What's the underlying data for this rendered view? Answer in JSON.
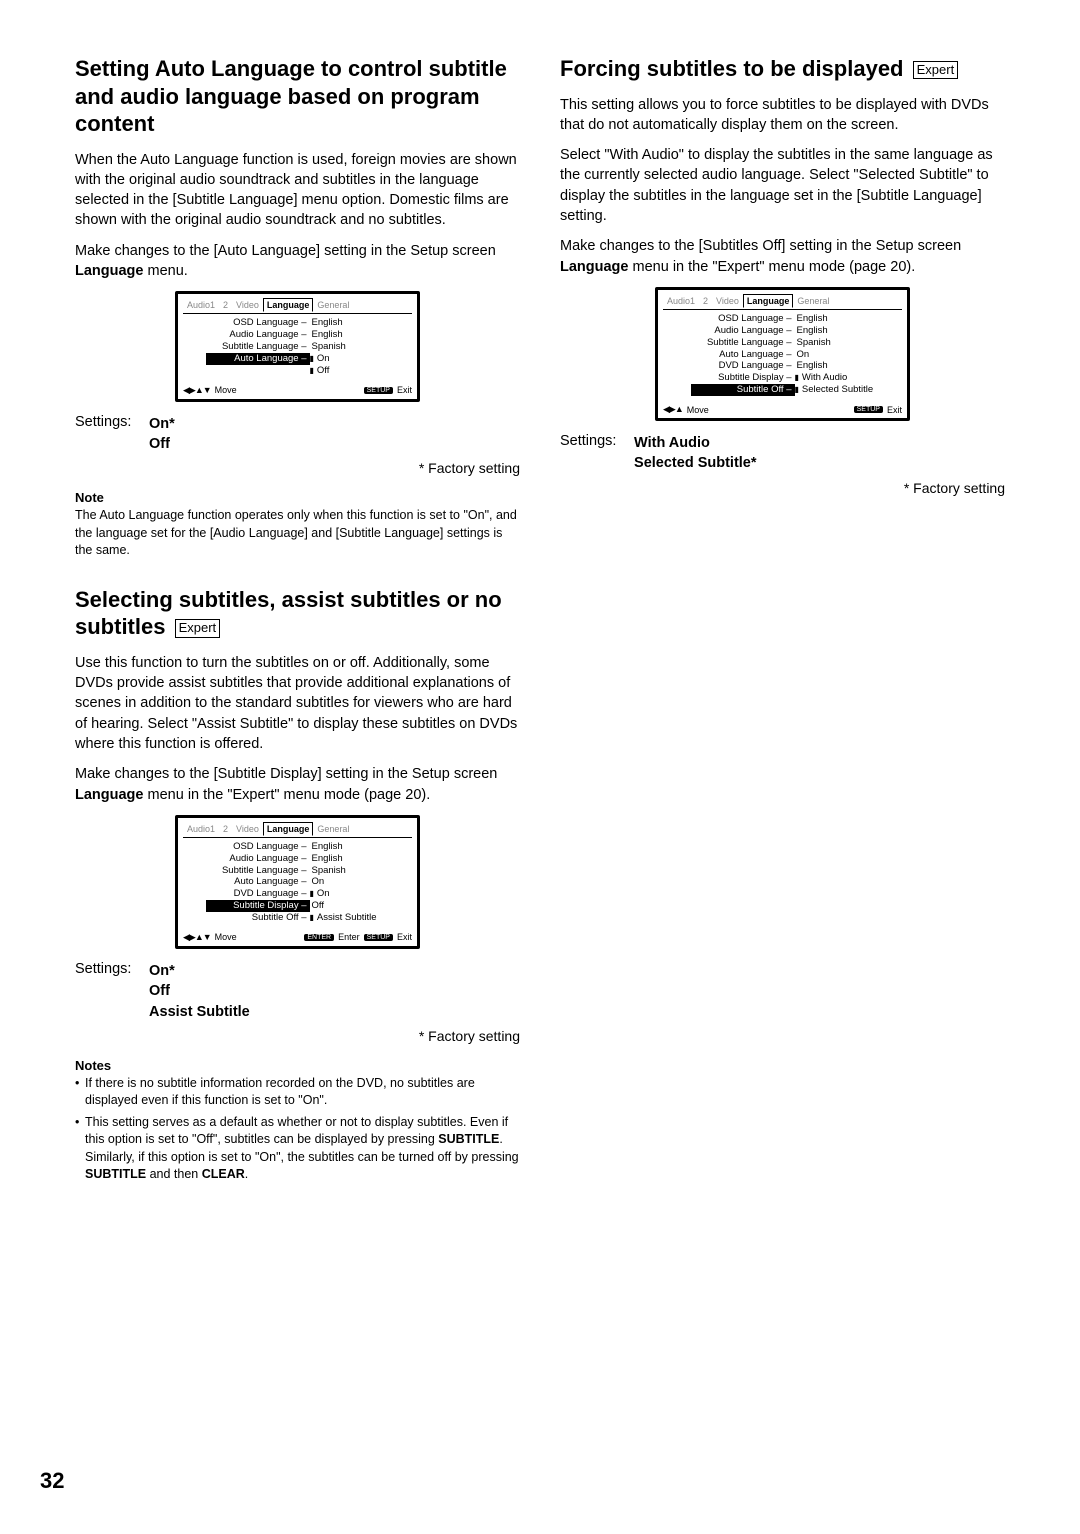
{
  "pageNumber": "32",
  "expertLabel": "Expert",
  "factoryNote": "*  Factory setting",
  "osdTabs": [
    "Audio1",
    "2",
    "Video",
    "Language",
    "General"
  ],
  "osdActiveTab": 3,
  "s1": {
    "title": "Setting Auto Language to control subtitle and audio language based on program content",
    "p1": "When the Auto Language function is used, foreign movies are shown with the original audio soundtrack and subtitles in the language selected in the [Subtitle Language] menu option. Domestic films are shown with the original audio soundtrack and no subtitles.",
    "p2a": "Make changes to the [Auto Language] setting in the Setup screen ",
    "p2b": "Language",
    "p2c": " menu.",
    "settingsLabel": "Settings:",
    "settings": [
      "On*",
      "Off"
    ],
    "noteHd": "Note",
    "noteTxt": "The Auto Language function operates only when this function is set to \"On\", and the language set for the [Audio Language] and [Subtitle Language] settings is the same.",
    "osd": {
      "rows": [
        {
          "l": "OSD Language",
          "r": "English"
        },
        {
          "l": "Audio Language",
          "r": "English"
        },
        {
          "l": "Subtitle Language",
          "r": "Spanish"
        },
        {
          "l": "Auto Language",
          "r": "On",
          "sel": true,
          "cursor": true
        }
      ],
      "extraOpts": [
        "Off"
      ],
      "foot": {
        "arrows": "◀▶▲▼",
        "move": "Move",
        "btn2": "SETUP",
        "txt2": "Exit"
      }
    }
  },
  "s2": {
    "title": "Selecting subtitles, assist subtitles or no subtitles",
    "p1": "Use this function to turn the subtitles on or off. Additionally, some DVDs provide assist subtitles that provide additional explanations of scenes in addition to the standard subtitles for viewers who are hard of hearing. Select \"Assist Subtitle\" to display these subtitles on DVDs where this function is offered.",
    "p2a": "Make changes to the [Subtitle Display] setting in the Setup screen ",
    "p2b": "Language",
    "p2c": " menu in the \"Expert\" menu mode (page 20).",
    "settingsLabel": "Settings:",
    "settings": [
      "On*",
      "Off",
      "Assist Subtitle"
    ],
    "notesHd": "Notes",
    "notes": [
      "If there is no subtitle information recorded on the DVD, no subtitles are displayed even if this function is set to \"On\".",
      "This setting serves as a default as whether or not to display subtitles. Even if this option is set to \"Off\", subtitles can be displayed by pressing <b>SUBTITLE</b>. Similarly, if this option is set to \"On\", the subtitles can be turned off by pressing <b>SUBTITLE</b> and then <b>CLEAR</b>."
    ],
    "osd": {
      "rows": [
        {
          "l": "OSD Language",
          "r": "English"
        },
        {
          "l": "Audio Language",
          "r": "English"
        },
        {
          "l": "Subtitle Language",
          "r": "Spanish"
        },
        {
          "l": "Auto Language",
          "r": "On"
        },
        {
          "l": "DVD Language",
          "r": "On",
          "cursor": true
        },
        {
          "l": "Subtitle Display",
          "r": "Off",
          "selL": true
        },
        {
          "l": "Subtitle Off",
          "r": "Assist Subtitle",
          "cursor": true
        }
      ],
      "foot": {
        "arrows": "◀▶▲▼",
        "move": "Move",
        "btn1": "ENTER",
        "txt1": "Enter",
        "btn2": "SETUP",
        "txt2": "Exit"
      }
    }
  },
  "s3": {
    "title": "Forcing subtitles to be displayed",
    "p1": "This setting allows you to force subtitles to be displayed with DVDs that do not automatically display them on the screen.",
    "p2": "Select \"With Audio\" to display the subtitles in the same language as the currently selected audio language. Select \"Selected Subtitle\" to display the subtitles in the language set in the [Subtitle Language] setting.",
    "p3a": "Make changes to the [Subtitles Off] setting in the Setup screen ",
    "p3b": "Language",
    "p3c": " menu in the \"Expert\" menu mode (page 20).",
    "settingsLabel": "Settings:",
    "settings": [
      "With Audio",
      "Selected Subtitle*"
    ],
    "osd": {
      "rows": [
        {
          "l": "OSD Language",
          "r": "English"
        },
        {
          "l": "Audio Language",
          "r": "English"
        },
        {
          "l": "Subtitle Language",
          "r": "Spanish"
        },
        {
          "l": "Auto Language",
          "r": "On"
        },
        {
          "l": "DVD Language",
          "r": "English"
        },
        {
          "l": "Subtitle Display",
          "r": "With Audio",
          "cursor": true
        },
        {
          "l": "Subtitle Off",
          "r": "Selected Subtitle",
          "selL": true,
          "selR": true,
          "cursor": true
        }
      ],
      "foot": {
        "arrows": "◀▶▲",
        "move": "Move",
        "btn2": "SETUP",
        "txt2": "Exit"
      }
    }
  }
}
